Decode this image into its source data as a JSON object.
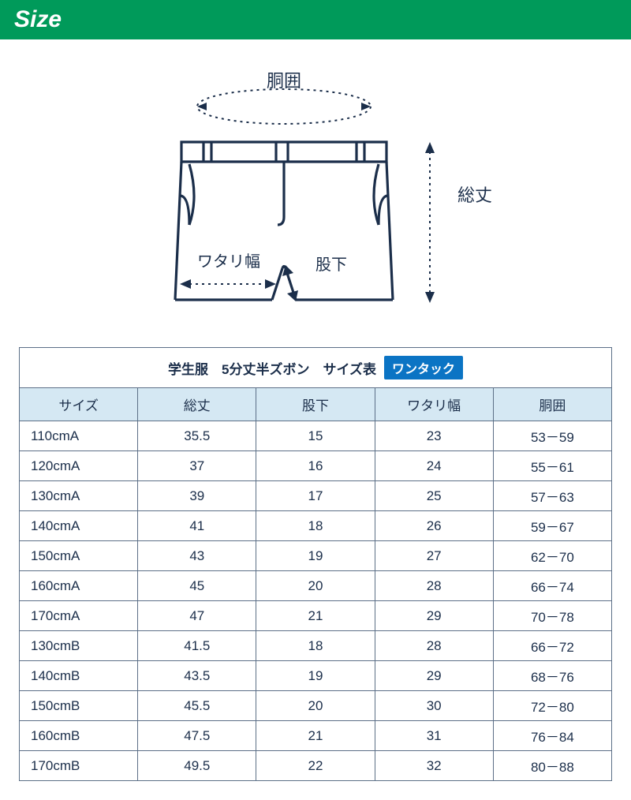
{
  "header": {
    "title": "Size"
  },
  "diagram": {
    "stroke_color": "#1b2e4a",
    "dash_color": "#1b2e4a",
    "text_color": "#1b2e4a",
    "label_waist": "胴囲",
    "label_total_length": "総丈",
    "label_thigh_width": "ワタリ幅",
    "label_inseam": "股下",
    "font_size": 20
  },
  "table": {
    "title": "学生服　5分丈半ズボン　サイズ表",
    "badge": "ワンタック",
    "title_bg": "#ffffff",
    "header_bg": "#d5e8f3",
    "border_color": "#5c6f87",
    "badge_bg": "#0b74c4",
    "columns": [
      "サイズ",
      "総丈",
      "股下",
      "ワタリ幅",
      "胴囲"
    ],
    "rows": [
      [
        "110cmA",
        "35.5",
        "15",
        "23",
        "53－59"
      ],
      [
        "120cmA",
        "37",
        "16",
        "24",
        "55－61"
      ],
      [
        "130cmA",
        "39",
        "17",
        "25",
        "57－63"
      ],
      [
        "140cmA",
        "41",
        "18",
        "26",
        "59－67"
      ],
      [
        "150cmA",
        "43",
        "19",
        "27",
        "62－70"
      ],
      [
        "160cmA",
        "45",
        "20",
        "28",
        "66－74"
      ],
      [
        "170cmA",
        "47",
        "21",
        "29",
        "70－78"
      ],
      [
        "130cmB",
        "41.5",
        "18",
        "28",
        "66－72"
      ],
      [
        "140cmB",
        "43.5",
        "19",
        "29",
        "68－76"
      ],
      [
        "150cmB",
        "45.5",
        "20",
        "30",
        "72－80"
      ],
      [
        "160cmB",
        "47.5",
        "21",
        "31",
        "76－84"
      ],
      [
        "170cmB",
        "49.5",
        "22",
        "32",
        "80－88"
      ]
    ]
  },
  "colors": {
    "header_green": "#009a5a",
    "diagram_stroke": "#1b2e4a",
    "table_border": "#5c6f87",
    "col_header_bg": "#d5e8f3",
    "badge_blue": "#0b74c4",
    "page_bg": "#ffffff"
  }
}
